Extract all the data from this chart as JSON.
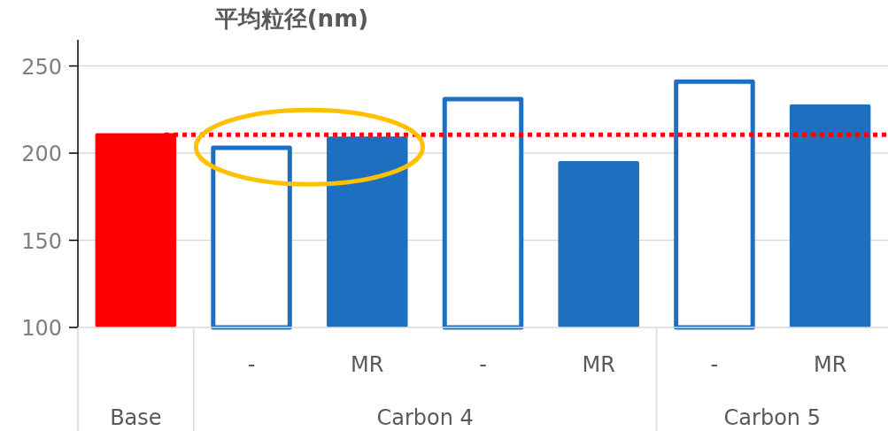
{
  "chart_data": {
    "type": "bar",
    "title": "平均粒径(nm)",
    "categories": [
      null,
      "-",
      "MR",
      "-",
      "MR",
      "-",
      "MR"
    ],
    "values": [
      211.5,
      203,
      209.5,
      231,
      195.5,
      241,
      228
    ],
    "colors": [
      "#ff0000",
      "#1f6fc0",
      "#1f6fc0",
      "#1f6fc0",
      "#1f6fc0",
      "#1f6fc0",
      "#1f6fc0"
    ],
    "ylim": [
      100,
      265
    ],
    "yticks": [
      100,
      150,
      200,
      250
    ],
    "grid": "y",
    "ref_lines": [
      {
        "axis": "y",
        "value": 210.5,
        "color": "#ff0000",
        "line_style": "dotted"
      }
    ],
    "annotations": [
      "Base",
      "Carbon 4",
      "Carbon 5"
    ]
  }
}
